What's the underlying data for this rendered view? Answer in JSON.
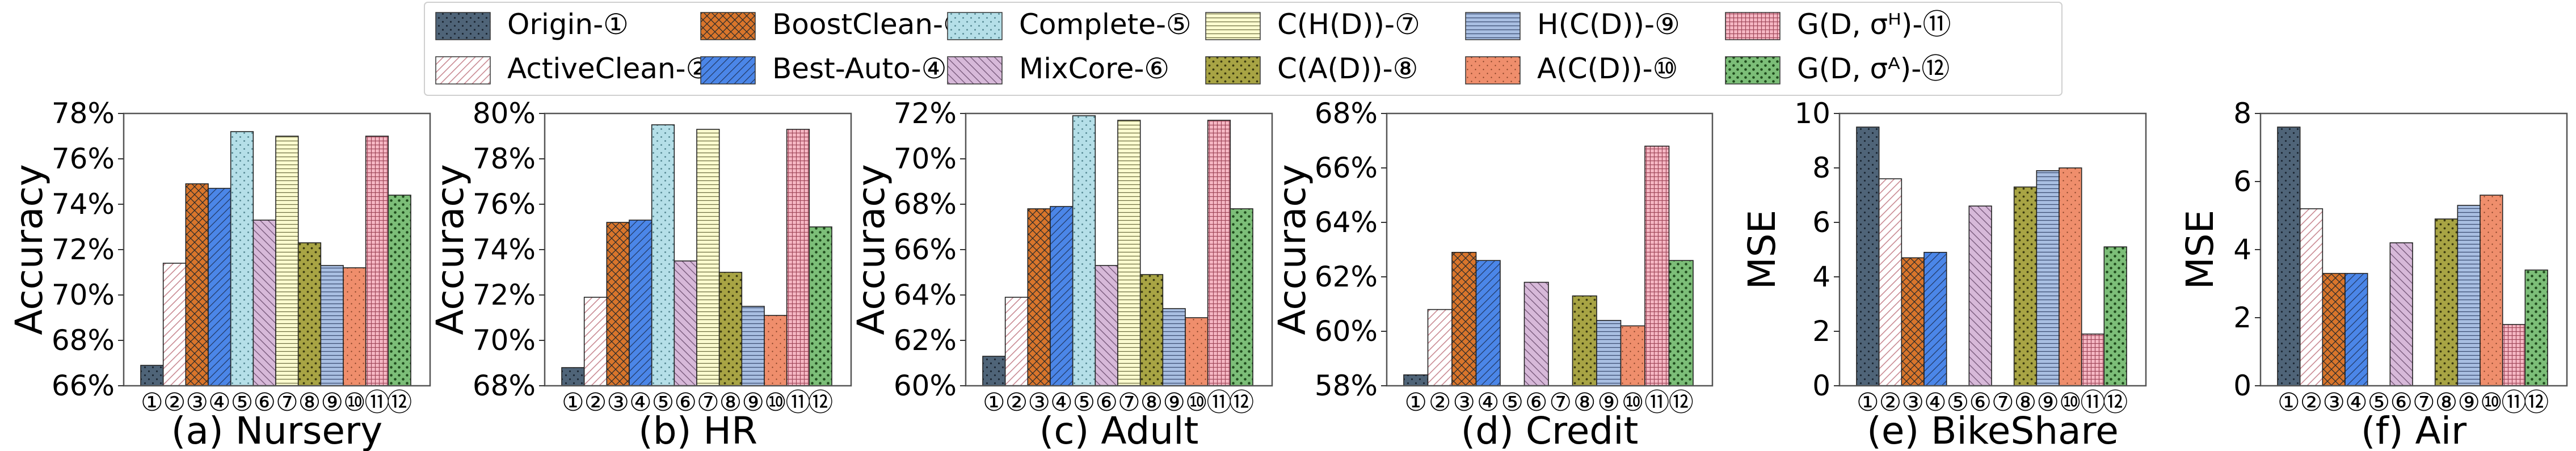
{
  "legend": [
    {
      "label": "Origin-①",
      "color": "#4f6478",
      "pattern": "dots-dark"
    },
    {
      "label": "ActiveClean-②",
      "color": "#ffffff",
      "pattern": "diag-pink"
    },
    {
      "label": "BoostClean-③",
      "color": "#d9752b",
      "pattern": "crosshatch"
    },
    {
      "label": "Best-Auto-④",
      "color": "#4b86e8",
      "pattern": "diag-dark"
    },
    {
      "label": "Complete-⑤",
      "color": "#b5dfe8",
      "pattern": "dots-light"
    },
    {
      "label": "MixCore-⑥",
      "color": "#d7b9d9",
      "pattern": "back-diag"
    },
    {
      "label": "C(H(D))-⑦",
      "color": "#fbfbcf",
      "pattern": "horizontal"
    },
    {
      "label": "C(A(D))-⑧",
      "color": "#a8a444",
      "pattern": "dots-medium"
    },
    {
      "label": "H(C(D))-⑨",
      "color": "#a9bfe2",
      "pattern": "horizontal-dark"
    },
    {
      "label": "A(C(D))-⑩",
      "color": "#ef8e6c",
      "pattern": "dots-small"
    },
    {
      "label": "G(D, σᴴ)-⑪",
      "color": "#f6b8c4",
      "pattern": "grid"
    },
    {
      "label": "G(D, σᴬ)-⑫",
      "color": "#7cbe78",
      "pattern": "dots-big"
    }
  ],
  "chart_data": [
    {
      "type": "bar",
      "title": "(a) Nursery",
      "ylabel": "Accuracy",
      "categories": [
        "①",
        "②",
        "③",
        "④",
        "⑤",
        "⑥",
        "⑦",
        "⑧",
        "⑨",
        "⑩",
        "⑪",
        "⑫"
      ],
      "values": [
        66.9,
        71.4,
        74.9,
        74.7,
        77.2,
        73.3,
        77.0,
        72.3,
        71.3,
        71.2,
        77.0,
        74.4
      ],
      "ylim": [
        66,
        78
      ],
      "yticks": [
        66,
        68,
        70,
        72,
        74,
        76,
        78
      ],
      "ytick_labels": [
        "66%",
        "68%",
        "70%",
        "72%",
        "74%",
        "76%",
        "78%"
      ]
    },
    {
      "type": "bar",
      "title": "(b) HR",
      "ylabel": "Accuracy",
      "categories": [
        "①",
        "②",
        "③",
        "④",
        "⑤",
        "⑥",
        "⑦",
        "⑧",
        "⑨",
        "⑩",
        "⑪",
        "⑫"
      ],
      "values": [
        68.8,
        71.9,
        75.2,
        75.3,
        79.5,
        73.5,
        79.3,
        73.0,
        71.5,
        71.1,
        79.3,
        75.0
      ],
      "ylim": [
        68,
        80
      ],
      "yticks": [
        68,
        70,
        72,
        74,
        76,
        78,
        80
      ],
      "ytick_labels": [
        "68%",
        "70%",
        "72%",
        "74%",
        "76%",
        "78%",
        "80%"
      ]
    },
    {
      "type": "bar",
      "title": "(c) Adult",
      "ylabel": "Accuracy",
      "categories": [
        "①",
        "②",
        "③",
        "④",
        "⑤",
        "⑥",
        "⑦",
        "⑧",
        "⑨",
        "⑩",
        "⑪",
        "⑫"
      ],
      "values": [
        61.3,
        63.9,
        67.8,
        67.9,
        71.9,
        65.3,
        71.7,
        64.9,
        63.4,
        63.0,
        71.7,
        67.8
      ],
      "ylim": [
        60,
        72
      ],
      "yticks": [
        60,
        62,
        64,
        66,
        68,
        70,
        72
      ],
      "ytick_labels": [
        "60%",
        "62%",
        "64%",
        "66%",
        "68%",
        "70%",
        "72%"
      ]
    },
    {
      "type": "bar",
      "title": "(d) Credit",
      "ylabel": "Accuracy",
      "categories": [
        "①",
        "②",
        "③",
        "④",
        "⑤",
        "⑥",
        "⑦",
        "⑧",
        "⑨",
        "⑩",
        "⑪",
        "⑫"
      ],
      "values": [
        58.4,
        60.8,
        62.9,
        62.6,
        null,
        61.8,
        null,
        61.3,
        60.4,
        60.2,
        66.8,
        62.6
      ],
      "ylim": [
        58,
        68
      ],
      "yticks": [
        58,
        60,
        62,
        64,
        66,
        68
      ],
      "ytick_labels": [
        "58%",
        "60%",
        "62%",
        "64%",
        "66%",
        "68%"
      ]
    },
    {
      "type": "bar",
      "title": "(e) BikeShare",
      "ylabel": "MSE",
      "categories": [
        "①",
        "②",
        "③",
        "④",
        "⑤",
        "⑥",
        "⑦",
        "⑧",
        "⑨",
        "⑩",
        "⑪",
        "⑫"
      ],
      "values": [
        9.5,
        7.6,
        4.7,
        4.9,
        null,
        6.6,
        null,
        7.3,
        7.9,
        8.0,
        1.9,
        5.1
      ],
      "ylim": [
        0,
        10
      ],
      "yticks": [
        0,
        2,
        4,
        6,
        8,
        10
      ],
      "ytick_labels": [
        "0",
        "2",
        "4",
        "6",
        "8",
        "10"
      ]
    },
    {
      "type": "bar",
      "title": "(f) Air",
      "ylabel": "MSE",
      "categories": [
        "①",
        "②",
        "③",
        "④",
        "⑤",
        "⑥",
        "⑦",
        "⑧",
        "⑨",
        "⑩",
        "⑪",
        "⑫"
      ],
      "values": [
        7.6,
        5.2,
        3.3,
        3.3,
        null,
        4.2,
        null,
        4.9,
        5.3,
        5.6,
        1.8,
        3.4
      ],
      "ylim": [
        0,
        8
      ],
      "yticks": [
        0,
        2,
        4,
        6,
        8
      ],
      "ytick_labels": [
        "0",
        "2",
        "4",
        "6",
        "8"
      ]
    }
  ]
}
